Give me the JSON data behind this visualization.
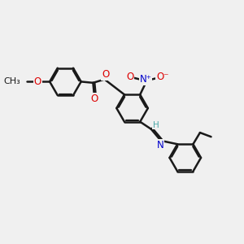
{
  "background_color": "#f0f0f0",
  "bond_color": "#1a1a1a",
  "bond_width": 1.8,
  "atom_colors": {
    "O": "#dd0000",
    "N": "#0000cc",
    "C": "#1a1a1a",
    "H": "#4da8a8"
  },
  "font_size": 8.5,
  "fig_width": 3.0,
  "fig_height": 3.0,
  "dpi": 100,
  "xlim": [
    0,
    10
  ],
  "ylim": [
    0,
    10
  ]
}
